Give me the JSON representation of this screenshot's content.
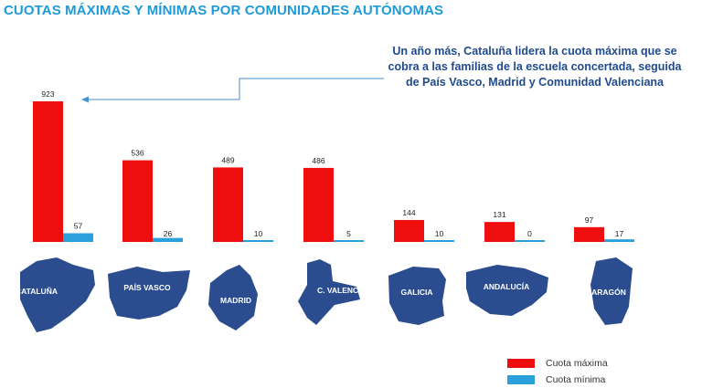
{
  "title": "CUOTAS MÁXIMAS Y MÍNIMAS POR COMUNIDADES AUTÓNOMAS",
  "annotation": "Un año más, Cataluña lidera la cuota máxima que se cobra a las familias de la escuela concertada, seguida de País Vasco, Madrid y Comunidad Valenciana",
  "colors": {
    "max": "#ee0e0e",
    "min": "#2aa0dc",
    "map": "#2b4d8f",
    "title": "#1e9ad6",
    "annotation": "#1f4b8e"
  },
  "chart_data": {
    "type": "bar",
    "title": "CUOTAS MÁXIMAS Y MÍNIMAS POR COMUNIDADES AUTÓNOMAS",
    "categories": [
      "CATALUÑA",
      "PAÍS VASCO",
      "MADRID",
      "C. VALENCIANA",
      "GALICIA",
      "ANDALUCÍA",
      "ARAGÓN"
    ],
    "series": [
      {
        "name": "Cuota máxima",
        "values": [
          923,
          536,
          489,
          486,
          144,
          131,
          97
        ]
      },
      {
        "name": "Cuota mínima",
        "values": [
          57,
          26,
          10,
          5,
          10,
          0,
          17
        ]
      }
    ],
    "ylim": [
      0,
      923
    ],
    "legend": "bottom-right",
    "xlabel": "",
    "ylabel": ""
  },
  "legend": {
    "max_label": "Cuota máxima",
    "min_label": "Cuota mínima"
  }
}
